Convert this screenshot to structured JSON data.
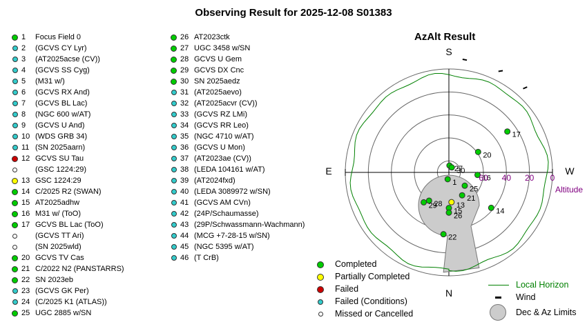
{
  "title": "Observing Result for 2025-12-08 S01383",
  "colors": {
    "completed": "#00cc00",
    "partial": "#ffff00",
    "failed": "#cc0000",
    "conditions": "#33cccc",
    "missed": "#ffffff",
    "horizon": "#008000",
    "altitude_label": "#800080",
    "limits": "#cccccc"
  },
  "targets_left": [
    {
      "num": "1",
      "name": "Focus Field 0",
      "status": "completed"
    },
    {
      "num": "2",
      "name": "(GCVS CY Lyr)",
      "status": "conditions"
    },
    {
      "num": "3",
      "name": "(AT2025acse (CV))",
      "status": "conditions"
    },
    {
      "num": "4",
      "name": "(GCVS SS Cyg)",
      "status": "conditions"
    },
    {
      "num": "5",
      "name": "(M31 w/)",
      "status": "conditions"
    },
    {
      "num": "6",
      "name": "(GCVS RX And)",
      "status": "conditions"
    },
    {
      "num": "7",
      "name": "(GCVS BL Lac)",
      "status": "conditions"
    },
    {
      "num": "8",
      "name": "(NGC 600 w/AT)",
      "status": "conditions"
    },
    {
      "num": "9",
      "name": "(GCVS U And)",
      "status": "conditions"
    },
    {
      "num": "10",
      "name": "(WDS GRB 34)",
      "status": "conditions"
    },
    {
      "num": "11",
      "name": "(SN 2025aarn)",
      "status": "conditions"
    },
    {
      "num": "12",
      "name": "GCVS SU Tau",
      "status": "failed"
    },
    {
      "num": "",
      "name": "(GSC 1224:29)",
      "status": "missed"
    },
    {
      "num": "13",
      "name": "GSC 1224:29",
      "status": "partial"
    },
    {
      "num": "14",
      "name": "C/2025 R2 (SWAN)",
      "status": "completed"
    },
    {
      "num": "15",
      "name": "AT2025adhw",
      "status": "completed"
    },
    {
      "num": "16",
      "name": "M31 w/ (ToO)",
      "status": "completed"
    },
    {
      "num": "17",
      "name": "GCVS BL Lac (ToO)",
      "status": "completed"
    },
    {
      "num": "",
      "name": "(GCVS TT Ari)",
      "status": "missed"
    },
    {
      "num": "",
      "name": "(SN 2025wld)",
      "status": "missed"
    },
    {
      "num": "20",
      "name": "GCVS TV Cas",
      "status": "completed"
    },
    {
      "num": "21",
      "name": "C/2022 N2 (PANSTARRS)",
      "status": "completed"
    },
    {
      "num": "22",
      "name": "SN 2023eb",
      "status": "completed"
    },
    {
      "num": "23",
      "name": "(GCVS GK Per)",
      "status": "conditions"
    },
    {
      "num": "24",
      "name": "(C/2025 K1 (ATLAS))",
      "status": "conditions"
    },
    {
      "num": "25",
      "name": "UGC 2885 w/SN",
      "status": "completed"
    }
  ],
  "targets_right": [
    {
      "num": "26",
      "name": "AT2023ctk",
      "status": "completed"
    },
    {
      "num": "27",
      "name": "UGC 3458 w/SN",
      "status": "completed"
    },
    {
      "num": "28",
      "name": "GCVS U Gem",
      "status": "completed"
    },
    {
      "num": "29",
      "name": "GCVS DX Cnc",
      "status": "completed"
    },
    {
      "num": "30",
      "name": "SN 2025aedz",
      "status": "completed"
    },
    {
      "num": "31",
      "name": "(AT2025aevo)",
      "status": "conditions"
    },
    {
      "num": "32",
      "name": "(AT2025acvr (CV))",
      "status": "conditions"
    },
    {
      "num": "33",
      "name": "(GCVS RZ LMi)",
      "status": "conditions"
    },
    {
      "num": "34",
      "name": "(GCVS RR Leo)",
      "status": "conditions"
    },
    {
      "num": "35",
      "name": "(NGC 4710 w/AT)",
      "status": "conditions"
    },
    {
      "num": "36",
      "name": "(GCVS U Mon)",
      "status": "conditions"
    },
    {
      "num": "37",
      "name": "(AT2023ae (CV))",
      "status": "conditions"
    },
    {
      "num": "38",
      "name": "(LEDA 104161 w/AT)",
      "status": "conditions"
    },
    {
      "num": "39",
      "name": "(AT2024fxd)",
      "status": "conditions"
    },
    {
      "num": "40",
      "name": "(LEDA 3089972 w/SN)",
      "status": "conditions"
    },
    {
      "num": "41",
      "name": "(GCVS AM CVn)",
      "status": "conditions"
    },
    {
      "num": "42",
      "name": "(24P/Schaumasse)",
      "status": "conditions"
    },
    {
      "num": "43",
      "name": "(29P/Schwassmann-Wachmann)",
      "status": "conditions"
    },
    {
      "num": "44",
      "name": "(MCG +7-28-15 w/SN)",
      "status": "conditions"
    },
    {
      "num": "45",
      "name": "(NGC 5395 w/AT)",
      "status": "conditions"
    },
    {
      "num": "46",
      "name": "(T CrB)",
      "status": "conditions"
    }
  ],
  "azalt": {
    "title": "AzAlt Result",
    "north": "N",
    "south": "S",
    "east": "E",
    "west": "W",
    "altitude_label": "Altitude",
    "alt_ticks": [
      "60",
      "40",
      "20",
      "0"
    ],
    "points": [
      {
        "label": "1",
        "az": 10,
        "alt": 84
      },
      {
        "label": "13",
        "az": 355,
        "alt": 64
      },
      {
        "label": "14",
        "az": 310,
        "alt": 42
      },
      {
        "label": "15",
        "az": 0,
        "alt": 59
      },
      {
        "label": "16",
        "az": 275,
        "alt": 65
      },
      {
        "label": "17",
        "az": 235,
        "alt": 28
      },
      {
        "label": "20",
        "az": 235,
        "alt": 59
      },
      {
        "label": "21",
        "az": 330,
        "alt": 67
      },
      {
        "label": "22",
        "az": 5,
        "alt": 36
      },
      {
        "label": "25",
        "az": 310,
        "alt": 72
      },
      {
        "label": "26",
        "az": 0,
        "alt": 55
      },
      {
        "label": "27",
        "az": 185,
        "alt": 84
      },
      {
        "label": "28",
        "az": 35,
        "alt": 60
      },
      {
        "label": "29",
        "az": 40,
        "alt": 56
      },
      {
        "label": "30",
        "az": 210,
        "alt": 85
      }
    ],
    "horizon_alt": 5,
    "wind_az": [
      8,
      27,
      42
    ]
  },
  "legend": {
    "completed": "Completed",
    "partial": "Partially Completed",
    "failed": "Failed",
    "conditions": "Failed (Conditions)",
    "missed": "Missed or Cancelled",
    "horizon": "Local Horizon",
    "wind": "Wind",
    "limits": "Dec & Az Limits"
  }
}
